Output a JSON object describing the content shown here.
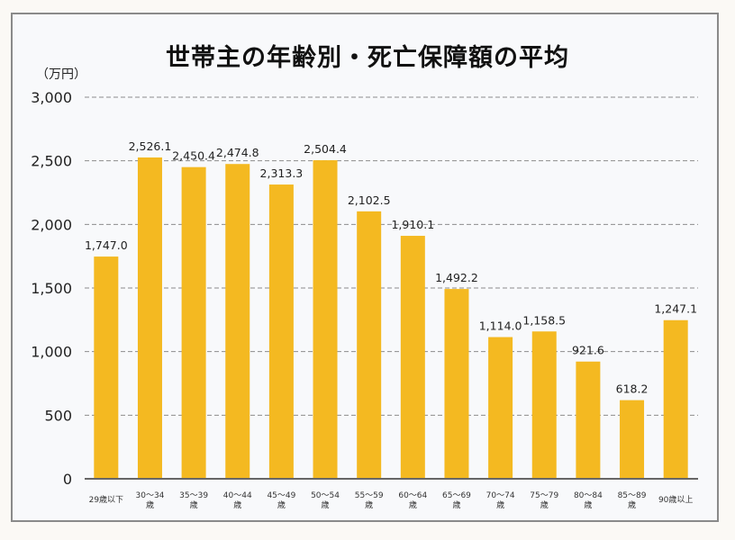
{
  "chart_data": {
    "type": "bar",
    "title": "世帯主の年齢別・死亡保障額の平均",
    "ylabel": "（万円）",
    "xlabel": "",
    "ylim": [
      0,
      3000
    ],
    "yticks": [
      0,
      500,
      1000,
      1500,
      2000,
      2500,
      3000
    ],
    "ytick_labels": [
      "0",
      "500",
      "1,000",
      "1,500",
      "2,000",
      "2,500",
      "3,000"
    ],
    "grid": true,
    "bar_color": "#f4b921",
    "categories": [
      [
        "29歳以下"
      ],
      [
        "30～34",
        "歳"
      ],
      [
        "35～39",
        "歳"
      ],
      [
        "40～44",
        "歳"
      ],
      [
        "45～49",
        "歳"
      ],
      [
        "50～54",
        "歳"
      ],
      [
        "55～59",
        "歳"
      ],
      [
        "60～64",
        "歳"
      ],
      [
        "65～69",
        "歳"
      ],
      [
        "70～74",
        "歳"
      ],
      [
        "75～79",
        "歳"
      ],
      [
        "80～84",
        "歳"
      ],
      [
        "85～89",
        "歳"
      ],
      [
        "90歳以上"
      ]
    ],
    "values": [
      1747.0,
      2526.1,
      2450.4,
      2474.8,
      2313.3,
      2504.4,
      2102.5,
      1910.1,
      1492.2,
      1114.0,
      1158.5,
      921.6,
      618.2,
      1247.1
    ],
    "value_labels": [
      "1,747.0",
      "2,526.1",
      "2,450.4",
      "2,474.8",
      "2,313.3",
      "2,504.4",
      "2,102.5",
      "1,910.1",
      "1,492.2",
      "1,114.0",
      "1,158.5",
      "921.6",
      "618.2",
      "1,247.1"
    ]
  }
}
